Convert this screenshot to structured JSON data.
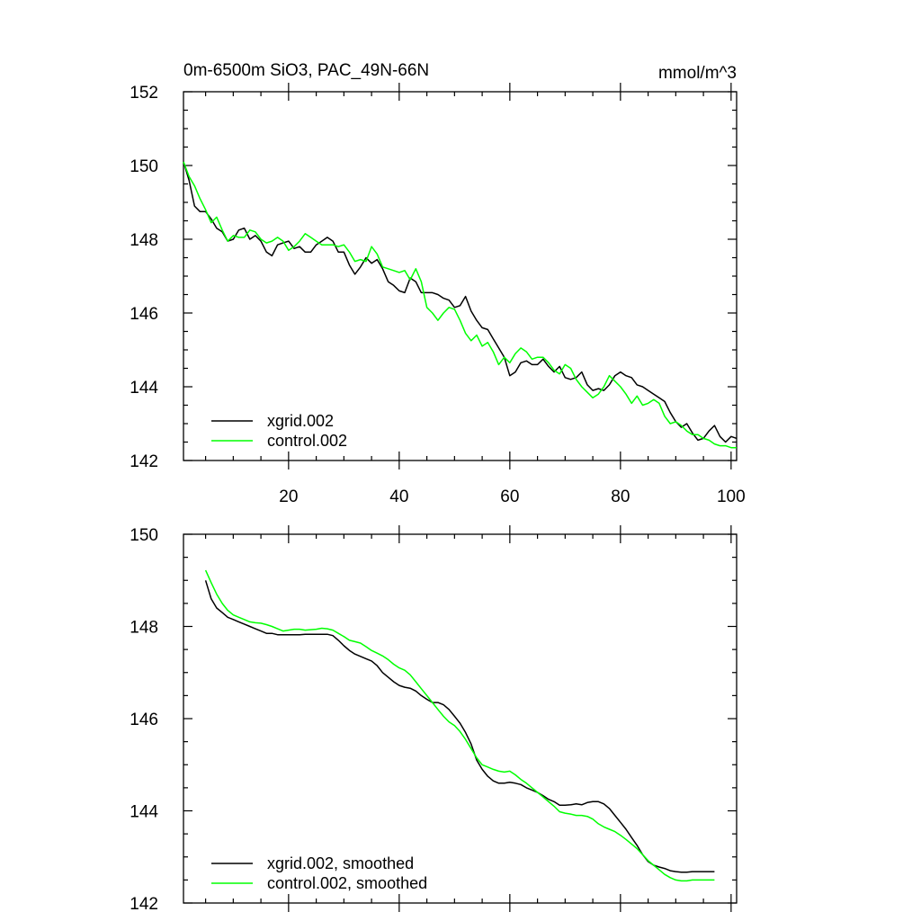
{
  "chart_data": [
    {
      "type": "line",
      "title": "0m-6500m SiO3, PAC_49N-66N",
      "units": "mmol/m^3",
      "xlim": [
        1,
        101
      ],
      "ylim": [
        142,
        152
      ],
      "xticks": [
        20,
        40,
        60,
        80,
        100
      ],
      "xtick_labels": [
        "20",
        "40",
        "60",
        "80",
        "100"
      ],
      "yticks": [
        142,
        144,
        146,
        148,
        150,
        152
      ],
      "ytick_labels": [
        "142",
        "144",
        "146",
        "148",
        "150",
        "152"
      ],
      "legend": "bottom-left",
      "series": [
        {
          "name": "xgrid.002",
          "color": "#000000",
          "x": [
            1,
            2,
            3,
            4,
            5,
            6,
            7,
            8,
            9,
            10,
            11,
            12,
            13,
            14,
            15,
            16,
            17,
            18,
            19,
            20,
            21,
            22,
            23,
            24,
            25,
            26,
            27,
            28,
            29,
            30,
            31,
            32,
            33,
            34,
            35,
            36,
            37,
            38,
            39,
            40,
            41,
            42,
            43,
            44,
            45,
            46,
            47,
            48,
            49,
            50,
            51,
            52,
            53,
            54,
            55,
            56,
            57,
            58,
            59,
            60,
            61,
            62,
            63,
            64,
            65,
            66,
            67,
            68,
            69,
            70,
            71,
            72,
            73,
            74,
            75,
            76,
            77,
            78,
            79,
            80,
            81,
            82,
            83,
            84,
            85,
            86,
            87,
            88,
            89,
            90,
            91,
            92,
            93,
            94,
            95,
            96,
            97,
            98,
            99,
            100,
            101
          ],
          "values": [
            150.1,
            149.6,
            148.9,
            148.75,
            148.75,
            148.55,
            148.3,
            148.2,
            147.95,
            148.0,
            148.25,
            148.3,
            148.0,
            148.1,
            147.95,
            147.65,
            147.55,
            147.85,
            147.9,
            147.95,
            147.75,
            147.8,
            147.65,
            147.65,
            147.85,
            147.95,
            148.05,
            147.95,
            147.65,
            147.65,
            147.3,
            147.05,
            147.25,
            147.5,
            147.35,
            147.45,
            147.2,
            146.85,
            146.75,
            146.6,
            146.55,
            146.95,
            146.85,
            146.55,
            146.55,
            146.55,
            146.5,
            146.4,
            146.35,
            146.15,
            146.2,
            146.45,
            146.05,
            145.8,
            145.6,
            145.55,
            145.3,
            145.05,
            144.8,
            144.3,
            144.4,
            144.65,
            144.7,
            144.6,
            144.6,
            144.75,
            144.55,
            144.4,
            144.55,
            144.25,
            144.2,
            144.25,
            144.4,
            144.05,
            143.9,
            143.95,
            143.9,
            144.05,
            144.3,
            144.4,
            144.3,
            144.25,
            144.05,
            144.0,
            143.9,
            143.8,
            143.7,
            143.6,
            143.3,
            143.05,
            142.9,
            143.0,
            142.75,
            142.55,
            142.6,
            142.8,
            142.95,
            142.65,
            142.5,
            142.65,
            142.6
          ]
        },
        {
          "name": "control.002",
          "color": "#00ff00",
          "x": [
            1,
            2,
            3,
            4,
            5,
            6,
            7,
            8,
            9,
            10,
            11,
            12,
            13,
            14,
            15,
            16,
            17,
            18,
            19,
            20,
            21,
            22,
            23,
            24,
            25,
            26,
            27,
            28,
            29,
            30,
            31,
            32,
            33,
            34,
            35,
            36,
            37,
            38,
            39,
            40,
            41,
            42,
            43,
            44,
            45,
            46,
            47,
            48,
            49,
            50,
            51,
            52,
            53,
            54,
            55,
            56,
            57,
            58,
            59,
            60,
            61,
            62,
            63,
            64,
            65,
            66,
            67,
            68,
            69,
            70,
            71,
            72,
            73,
            74,
            75,
            76,
            77,
            78,
            79,
            80,
            81,
            82,
            83,
            84,
            85,
            86,
            87,
            88,
            89,
            90,
            91,
            92,
            93,
            94,
            95,
            96,
            97,
            98,
            99,
            100,
            101
          ],
          "values": [
            150.1,
            149.7,
            149.45,
            149.1,
            148.8,
            148.45,
            148.6,
            148.25,
            147.95,
            148.1,
            148.05,
            148.05,
            148.25,
            148.2,
            148.0,
            147.9,
            147.95,
            148.05,
            147.95,
            147.7,
            147.8,
            147.95,
            148.15,
            148.05,
            147.95,
            147.85,
            147.85,
            147.85,
            147.8,
            147.85,
            147.65,
            147.4,
            147.45,
            147.4,
            147.8,
            147.6,
            147.25,
            147.2,
            147.15,
            147.1,
            147.15,
            146.9,
            147.2,
            146.85,
            146.15,
            146.0,
            145.8,
            146.0,
            146.15,
            146.1,
            145.8,
            145.45,
            145.25,
            145.4,
            145.1,
            145.2,
            144.95,
            144.6,
            144.8,
            144.65,
            144.9,
            145.05,
            144.95,
            144.75,
            144.8,
            144.8,
            144.65,
            144.45,
            144.35,
            144.6,
            144.5,
            144.2,
            144.0,
            143.85,
            143.7,
            143.8,
            144.0,
            144.3,
            144.15,
            144.0,
            143.8,
            143.55,
            143.75,
            143.5,
            143.55,
            143.65,
            143.55,
            143.2,
            143.0,
            143.05,
            142.95,
            142.8,
            142.7,
            142.7,
            142.6,
            142.55,
            142.45,
            142.4,
            142.4,
            142.35,
            142.35
          ]
        }
      ]
    },
    {
      "type": "line",
      "title": "",
      "xlim": [
        1,
        101
      ],
      "ylim": [
        142,
        150
      ],
      "xticks": [
        20,
        40,
        60,
        80,
        100
      ],
      "yticks": [
        142,
        144,
        146,
        148,
        150
      ],
      "ytick_labels": [
        "142",
        "144",
        "146",
        "148",
        "150"
      ],
      "legend": "bottom-left",
      "series": [
        {
          "name": "xgrid.002, smoothed",
          "color": "#000000",
          "x": [
            5,
            6,
            7,
            8,
            9,
            10,
            11,
            12,
            13,
            14,
            15,
            16,
            17,
            18,
            19,
            20,
            21,
            22,
            23,
            24,
            25,
            26,
            27,
            28,
            29,
            30,
            31,
            32,
            33,
            34,
            35,
            36,
            37,
            38,
            39,
            40,
            41,
            42,
            43,
            44,
            45,
            46,
            47,
            48,
            49,
            50,
            51,
            52,
            53,
            54,
            55,
            56,
            57,
            58,
            59,
            60,
            61,
            62,
            63,
            64,
            65,
            66,
            67,
            68,
            69,
            70,
            71,
            72,
            73,
            74,
            75,
            76,
            77,
            78,
            79,
            80,
            81,
            82,
            83,
            84,
            85,
            86,
            87,
            88,
            89,
            90,
            91,
            92,
            93,
            94,
            95,
            96,
            97
          ],
          "values": [
            149.0,
            148.6,
            148.4,
            148.3,
            148.2,
            148.15,
            148.1,
            148.05,
            148.0,
            147.95,
            147.9,
            147.85,
            147.85,
            147.82,
            147.82,
            147.82,
            147.82,
            147.82,
            147.83,
            147.83,
            147.83,
            147.83,
            147.83,
            147.8,
            147.7,
            147.58,
            147.48,
            147.4,
            147.35,
            147.3,
            147.25,
            147.15,
            147.0,
            146.9,
            146.8,
            146.72,
            146.68,
            146.66,
            146.6,
            146.5,
            146.42,
            146.35,
            146.35,
            146.3,
            146.2,
            146.05,
            145.9,
            145.7,
            145.45,
            145.1,
            144.9,
            144.75,
            144.65,
            144.6,
            144.6,
            144.62,
            144.6,
            144.57,
            144.5,
            144.45,
            144.4,
            144.33,
            144.25,
            144.2,
            144.12,
            144.12,
            144.13,
            144.15,
            144.13,
            144.18,
            144.2,
            144.2,
            144.15,
            144.05,
            143.9,
            143.75,
            143.6,
            143.42,
            143.25,
            143.05,
            142.9,
            142.82,
            142.78,
            142.75,
            142.7,
            142.68,
            142.67,
            142.67,
            142.68,
            142.68,
            142.68,
            142.68,
            142.68
          ]
        },
        {
          "name": "control.002, smoothed",
          "color": "#00ff00",
          "x": [
            5,
            6,
            7,
            8,
            9,
            10,
            11,
            12,
            13,
            14,
            15,
            16,
            17,
            18,
            19,
            20,
            21,
            22,
            23,
            24,
            25,
            26,
            27,
            28,
            29,
            30,
            31,
            32,
            33,
            34,
            35,
            36,
            37,
            38,
            39,
            40,
            41,
            42,
            43,
            44,
            45,
            46,
            47,
            48,
            49,
            50,
            51,
            52,
            53,
            54,
            55,
            56,
            57,
            58,
            59,
            60,
            61,
            62,
            63,
            64,
            65,
            66,
            67,
            68,
            69,
            70,
            71,
            72,
            73,
            74,
            75,
            76,
            77,
            78,
            79,
            80,
            81,
            82,
            83,
            84,
            85,
            86,
            87,
            88,
            89,
            90,
            91,
            92,
            93,
            94,
            95,
            96,
            97
          ],
          "values": [
            149.22,
            148.95,
            148.7,
            148.5,
            148.35,
            148.25,
            148.2,
            148.15,
            148.1,
            148.08,
            148.07,
            148.04,
            148.0,
            147.95,
            147.9,
            147.92,
            147.94,
            147.94,
            147.92,
            147.93,
            147.94,
            147.96,
            147.95,
            147.92,
            147.85,
            147.78,
            147.7,
            147.67,
            147.64,
            147.56,
            147.48,
            147.42,
            147.36,
            147.28,
            147.18,
            147.1,
            147.05,
            146.95,
            146.8,
            146.65,
            146.5,
            146.35,
            146.2,
            146.05,
            145.93,
            145.85,
            145.72,
            145.55,
            145.35,
            145.15,
            145.0,
            144.95,
            144.9,
            144.86,
            144.84,
            144.86,
            144.78,
            144.68,
            144.6,
            144.5,
            144.4,
            144.3,
            144.2,
            144.1,
            143.98,
            143.95,
            143.93,
            143.9,
            143.9,
            143.88,
            143.82,
            143.72,
            143.65,
            143.6,
            143.55,
            143.47,
            143.38,
            143.28,
            143.18,
            143.05,
            142.92,
            142.82,
            142.72,
            142.62,
            142.55,
            142.5,
            142.48,
            142.48,
            142.5,
            142.5,
            142.5,
            142.5,
            142.5
          ]
        }
      ]
    }
  ]
}
